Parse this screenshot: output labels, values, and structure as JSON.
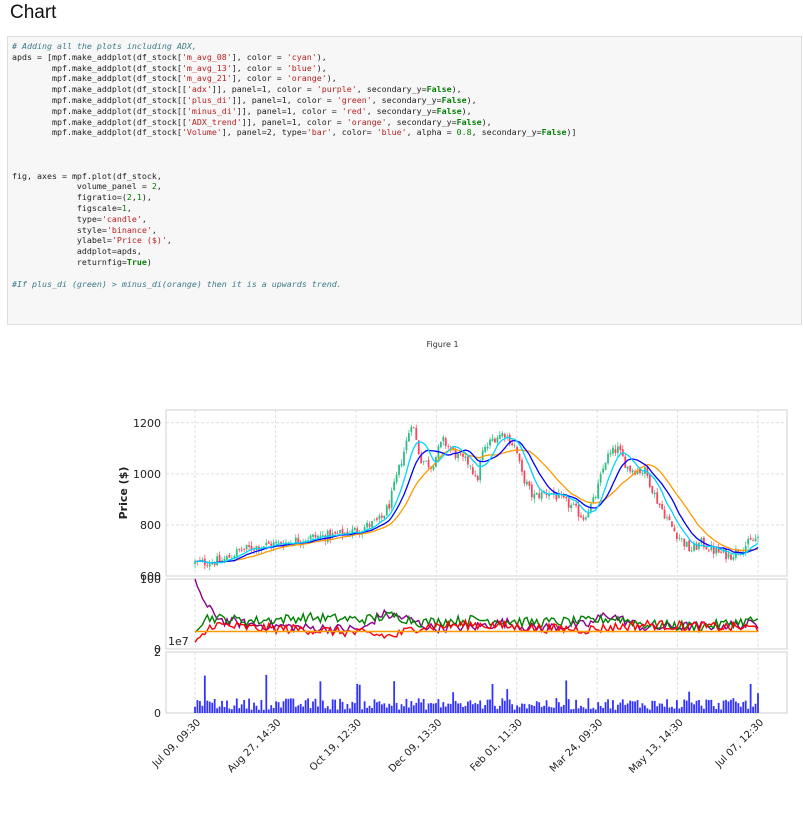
{
  "heading": "Chart",
  "code": {
    "lines": [
      {
        "parts": [
          {
            "t": "# Adding all the plots including ADX,",
            "c": "cm"
          }
        ]
      },
      {
        "parts": [
          {
            "t": "apds = [mpf.make_addplot(df_stock["
          },
          {
            "t": "'m_avg_08'",
            "c": "st"
          },
          {
            "t": "], color = "
          },
          {
            "t": "'cyan'",
            "c": "st"
          },
          {
            "t": "),"
          }
        ]
      },
      {
        "parts": [
          {
            "t": "        mpf.make_addplot(df_stock["
          },
          {
            "t": "'m_avg_13'",
            "c": "st"
          },
          {
            "t": "], color = "
          },
          {
            "t": "'blue'",
            "c": "st"
          },
          {
            "t": "),"
          }
        ]
      },
      {
        "parts": [
          {
            "t": "        mpf.make_addplot(df_stock["
          },
          {
            "t": "'m_avg_21'",
            "c": "st"
          },
          {
            "t": "], color = "
          },
          {
            "t": "'orange'",
            "c": "st"
          },
          {
            "t": "),"
          }
        ]
      },
      {
        "parts": [
          {
            "t": "        mpf.make_addplot(df_stock[["
          },
          {
            "t": "'adx'",
            "c": "st"
          },
          {
            "t": "]], panel=1, color = "
          },
          {
            "t": "'purple'",
            "c": "st"
          },
          {
            "t": ", secondary_y="
          },
          {
            "t": "False",
            "c": "kw"
          },
          {
            "t": "),"
          }
        ]
      },
      {
        "parts": [
          {
            "t": "        mpf.make_addplot(df_stock[["
          },
          {
            "t": "'plus_di'",
            "c": "st"
          },
          {
            "t": "]], panel=1, color = "
          },
          {
            "t": "'green'",
            "c": "st"
          },
          {
            "t": ", secondary_y="
          },
          {
            "t": "False",
            "c": "kw"
          },
          {
            "t": "),"
          }
        ]
      },
      {
        "parts": [
          {
            "t": "        mpf.make_addplot(df_stock[["
          },
          {
            "t": "'minus_di'",
            "c": "st"
          },
          {
            "t": "]], panel=1, color = "
          },
          {
            "t": "'red'",
            "c": "st"
          },
          {
            "t": ", secondary_y="
          },
          {
            "t": "False",
            "c": "kw"
          },
          {
            "t": "),"
          }
        ]
      },
      {
        "parts": [
          {
            "t": "        mpf.make_addplot(df_stock[["
          },
          {
            "t": "'ADX_trend'",
            "c": "st"
          },
          {
            "t": "]], panel=1, color = "
          },
          {
            "t": "'orange'",
            "c": "st"
          },
          {
            "t": ", secondary_y="
          },
          {
            "t": "False",
            "c": "kw"
          },
          {
            "t": "),"
          }
        ]
      },
      {
        "parts": [
          {
            "t": "        mpf.make_addplot(df_stock["
          },
          {
            "t": "'Volume'",
            "c": "st"
          },
          {
            "t": "], panel=2, type="
          },
          {
            "t": "'bar'",
            "c": "st"
          },
          {
            "t": ", color= "
          },
          {
            "t": "'blue'",
            "c": "st"
          },
          {
            "t": ", alpha = "
          },
          {
            "t": "0.8",
            "c": "nm"
          },
          {
            "t": ", secondary_y="
          },
          {
            "t": "False",
            "c": "kw"
          },
          {
            "t": ")]"
          }
        ]
      },
      {
        "parts": [
          {
            "t": ""
          }
        ]
      },
      {
        "parts": [
          {
            "t": ""
          }
        ]
      },
      {
        "parts": [
          {
            "t": ""
          }
        ]
      },
      {
        "parts": [
          {
            "t": "fig, axes = mpf.plot(df_stock,"
          }
        ]
      },
      {
        "parts": [
          {
            "t": "             volume_panel = "
          },
          {
            "t": "2",
            "c": "nm"
          },
          {
            "t": ","
          }
        ]
      },
      {
        "parts": [
          {
            "t": "             figratio=("
          },
          {
            "t": "2",
            "c": "nm"
          },
          {
            "t": ","
          },
          {
            "t": "1",
            "c": "nm"
          },
          {
            "t": "),"
          }
        ]
      },
      {
        "parts": [
          {
            "t": "             figscale="
          },
          {
            "t": "1",
            "c": "nm"
          },
          {
            "t": ","
          }
        ]
      },
      {
        "parts": [
          {
            "t": "             type="
          },
          {
            "t": "'candle'",
            "c": "st"
          },
          {
            "t": ","
          }
        ]
      },
      {
        "parts": [
          {
            "t": "             style="
          },
          {
            "t": "'binance'",
            "c": "st"
          },
          {
            "t": ","
          }
        ]
      },
      {
        "parts": [
          {
            "t": "             ylabel="
          },
          {
            "t": "'Price ($)'",
            "c": "st"
          },
          {
            "t": ","
          }
        ]
      },
      {
        "parts": [
          {
            "t": "             addplot=apds,"
          }
        ]
      },
      {
        "parts": [
          {
            "t": "             returnfig="
          },
          {
            "t": "True",
            "c": "kw"
          },
          {
            "t": ")"
          }
        ]
      },
      {
        "parts": [
          {
            "t": ""
          }
        ]
      },
      {
        "parts": [
          {
            "t": "#If plus_di (green) > minus_di(orange) then it is a upwards trend.",
            "c": "cm"
          }
        ]
      }
    ]
  },
  "figure_title": "Figure 1",
  "colors": {
    "candle_up": "#2ebd85",
    "candle_down": "#f6465d",
    "m_avg_08": "#00d4ff",
    "m_avg_13": "#0000ff",
    "m_avg_21": "#ff9900",
    "adx": "#8b008b",
    "plus_di": "#008000",
    "minus_di": "#ff0000",
    "adx_trend": "#ff9900",
    "volume": "#0000ff"
  },
  "chart_data": [
    {
      "panel": "price",
      "type": "candlestick",
      "ylabel": "Price ($)",
      "ylim": [
        600,
        1250
      ],
      "yticks": [
        "600",
        "800",
        "1000",
        "1200"
      ],
      "xticks": [
        "Jul 09, 09:30",
        "Aug 27, 14:30",
        "Oct 19, 12:30",
        "Dec 09, 13:30",
        "Feb 01, 11:30",
        "Mar 24, 09:30",
        "May 13, 14:30",
        "Jul 07, 12:30"
      ],
      "grid": true,
      "price_path": [
        [
          0,
          650
        ],
        [
          0.05,
          660
        ],
        [
          0.08,
          700
        ],
        [
          0.12,
          720
        ],
        [
          0.16,
          730
        ],
        [
          0.2,
          750
        ],
        [
          0.25,
          760
        ],
        [
          0.28,
          775
        ],
        [
          0.3,
          790
        ],
        [
          0.33,
          820
        ],
        [
          0.345,
          880
        ],
        [
          0.36,
          1000
        ],
        [
          0.375,
          1120
        ],
        [
          0.385,
          1210
        ],
        [
          0.4,
          1060
        ],
        [
          0.42,
          1030
        ],
        [
          0.44,
          1130
        ],
        [
          0.47,
          1060
        ],
        [
          0.49,
          1040
        ],
        [
          0.5,
          960
        ],
        [
          0.51,
          1080
        ],
        [
          0.53,
          1140
        ],
        [
          0.55,
          1160
        ],
        [
          0.57,
          1100
        ],
        [
          0.58,
          1000
        ],
        [
          0.6,
          910
        ],
        [
          0.63,
          930
        ],
        [
          0.65,
          900
        ],
        [
          0.67,
          870
        ],
        [
          0.69,
          830
        ],
        [
          0.71,
          900
        ],
        [
          0.73,
          1060
        ],
        [
          0.75,
          1100
        ],
        [
          0.77,
          1020
        ],
        [
          0.8,
          1010
        ],
        [
          0.82,
          900
        ],
        [
          0.85,
          780
        ],
        [
          0.88,
          700
        ],
        [
          0.9,
          730
        ],
        [
          0.92,
          700
        ],
        [
          0.95,
          680
        ],
        [
          0.97,
          710
        ],
        [
          1,
          750
        ]
      ]
    },
    {
      "panel": "indicators",
      "type": "line",
      "ylim": [
        0,
        100
      ],
      "yticks": [
        "0",
        "100"
      ],
      "series": [
        {
          "name": "adx",
          "values": [
            [
              0,
              100
            ],
            [
              0.02,
              60
            ],
            [
              0.05,
              40
            ],
            [
              0.1,
              35
            ],
            [
              0.2,
              30
            ],
            [
              0.3,
              28
            ],
            [
              0.33,
              50
            ],
            [
              0.37,
              45
            ],
            [
              0.42,
              30
            ],
            [
              0.5,
              32
            ],
            [
              0.55,
              38
            ],
            [
              0.6,
              30
            ],
            [
              0.7,
              35
            ],
            [
              0.73,
              50
            ],
            [
              0.8,
              30
            ],
            [
              0.9,
              33
            ],
            [
              1,
              35
            ]
          ]
        },
        {
          "name": "plus_di",
          "values": [
            [
              0,
              30
            ],
            [
              0.02,
              45
            ],
            [
              0.1,
              40
            ],
            [
              0.2,
              45
            ],
            [
              0.3,
              42
            ],
            [
              0.35,
              48
            ],
            [
              0.4,
              38
            ],
            [
              0.5,
              42
            ],
            [
              0.55,
              40
            ],
            [
              0.6,
              38
            ],
            [
              0.7,
              40
            ],
            [
              0.75,
              44
            ],
            [
              0.8,
              35
            ],
            [
              0.9,
              32
            ],
            [
              1,
              42
            ]
          ]
        },
        {
          "name": "minus_di",
          "values": [
            [
              0,
              5
            ],
            [
              0.03,
              35
            ],
            [
              0.1,
              30
            ],
            [
              0.2,
              28
            ],
            [
              0.3,
              22
            ],
            [
              0.35,
              18
            ],
            [
              0.4,
              32
            ],
            [
              0.5,
              35
            ],
            [
              0.6,
              30
            ],
            [
              0.7,
              28
            ],
            [
              0.8,
              35
            ],
            [
              0.9,
              32
            ],
            [
              1,
              30
            ]
          ]
        },
        {
          "name": "ADX_trend",
          "values": [
            [
              0,
              25
            ],
            [
              1,
              25
            ]
          ]
        }
      ]
    },
    {
      "panel": "volume",
      "type": "bar",
      "ylim": [
        0,
        2
      ],
      "yticks": [
        "0",
        "2"
      ],
      "scale_label": "1e7",
      "typical_value": 0.35,
      "peak_values": [
        0.9,
        1.1,
        1.0,
        0.8,
        1.05,
        0.9,
        0.85
      ]
    }
  ]
}
